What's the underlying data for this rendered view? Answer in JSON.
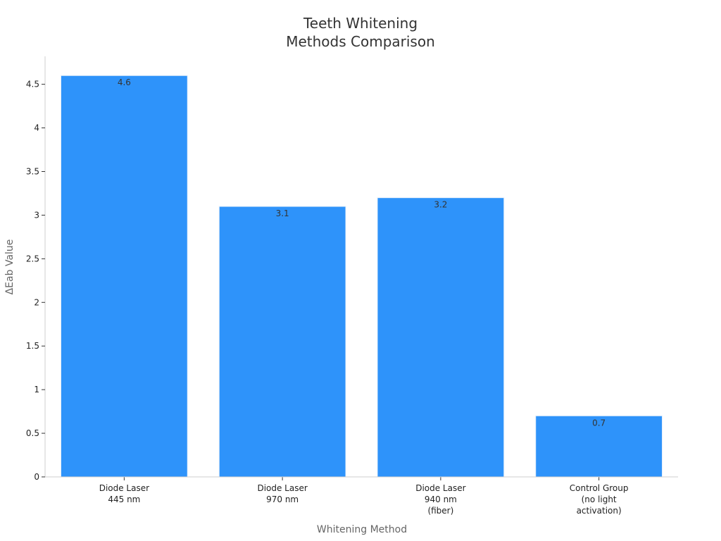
{
  "chart_data": {
    "type": "bar",
    "title": [
      "Teeth Whitening",
      "Methods Comparison"
    ],
    "xlabel": "Whitening Method",
    "ylabel": "ΔEab Value",
    "categories": [
      [
        "Diode Laser",
        "445 nm"
      ],
      [
        "Diode Laser",
        "970 nm"
      ],
      [
        "Diode Laser",
        "940 nm",
        "(fiber)"
      ],
      [
        "Control Group",
        "(no light",
        "activation)"
      ]
    ],
    "values": [
      4.6,
      3.1,
      3.2,
      0.7
    ],
    "data_labels": [
      "4.6",
      "3.1",
      "3.2",
      "0.7"
    ],
    "yticks": [
      "0",
      "0.5",
      "1",
      "1.5",
      "2",
      "2.5",
      "3",
      "3.5",
      "4",
      "4.5"
    ],
    "ylim": [
      0,
      4.82
    ],
    "grid": false,
    "bar_color": "#2e93fa",
    "bar_edge_color": "#e8f1fb"
  }
}
